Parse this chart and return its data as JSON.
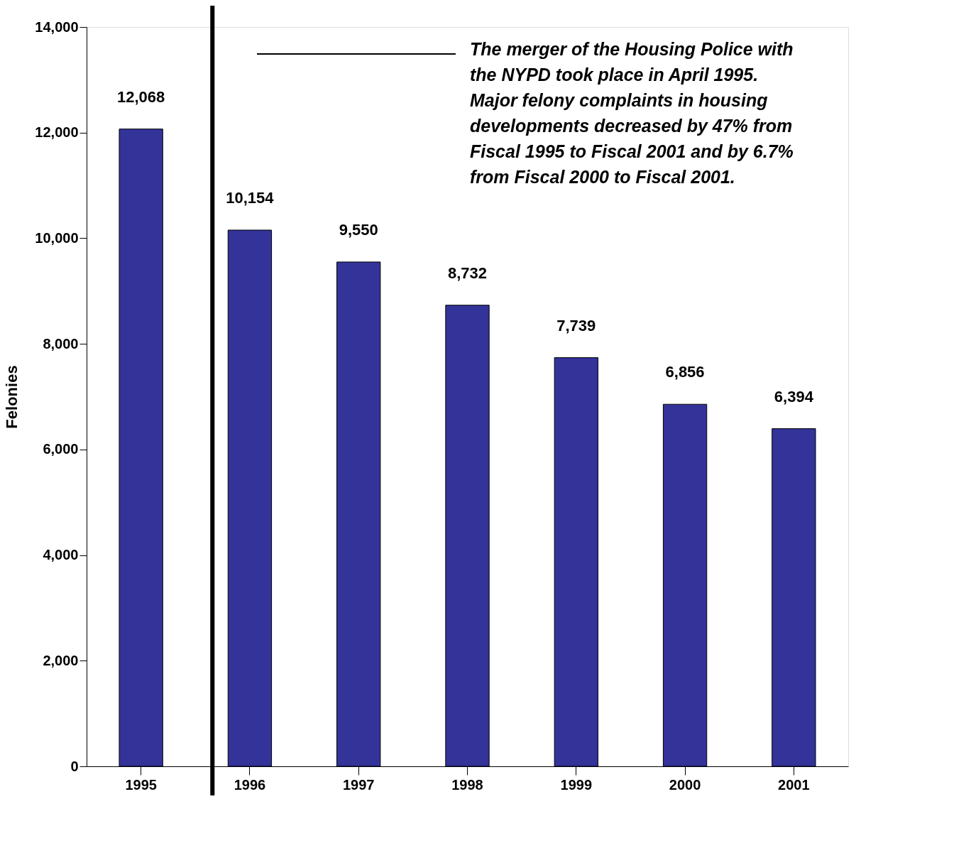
{
  "chart_data": {
    "type": "bar",
    "ylabel": "Felonies",
    "categories": [
      "1995",
      "1996",
      "1997",
      "1998",
      "1999",
      "2000",
      "2001"
    ],
    "values": [
      12068,
      10154,
      9550,
      8732,
      7739,
      6856,
      6394
    ],
    "color": "#333399",
    "value_labels": [
      "12,068",
      "10,154",
      "9,550",
      "8,732",
      "7,739",
      "6,856",
      "6,394"
    ],
    "ylim": [
      0,
      14000
    ],
    "yticks": [
      {
        "value": 0,
        "label": "0"
      },
      {
        "value": 2000,
        "label": "2,000"
      },
      {
        "value": 4000,
        "label": "4,000"
      },
      {
        "value": 6000,
        "label": "6,000"
      },
      {
        "value": 8000,
        "label": "8,000"
      },
      {
        "value": 10000,
        "label": "10,000"
      },
      {
        "value": 12000,
        "label": "12,000"
      },
      {
        "value": 14000,
        "label": "14,000"
      }
    ],
    "grid": false,
    "ref_lines": [
      {
        "axis": "x",
        "value": "1996",
        "label": null,
        "color": "#000000"
      }
    ],
    "annotations": [
      "The merger of the Housing Police with\nthe NYPD took place in April 1995.\nMajor felony complaints in housing\ndevelopments decreased by 47% from\nFiscal 1995 to Fiscal 2001 and by 6.7%\nfrom Fiscal 2000 to Fiscal 2001."
    ]
  }
}
